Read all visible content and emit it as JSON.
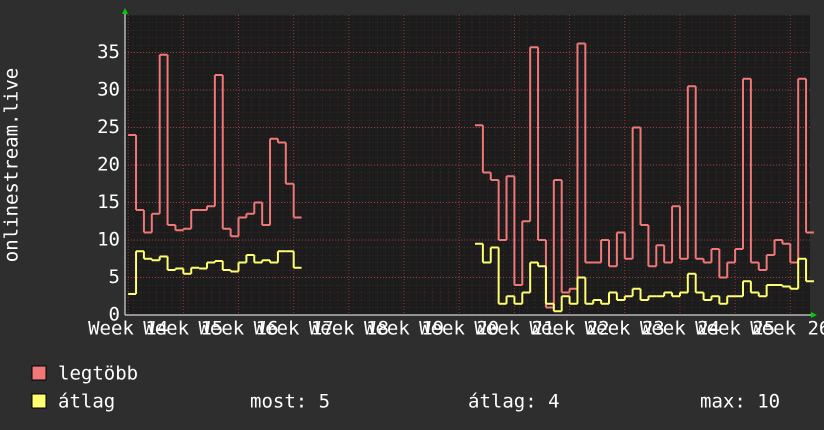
{
  "chart_data": {
    "type": "line",
    "step": true,
    "y_label": "onlinestream.live",
    "x": [
      0,
      1,
      2,
      3,
      4,
      5,
      6,
      7,
      8,
      9,
      10,
      11,
      12,
      13,
      14,
      15,
      16,
      17,
      18,
      19,
      20,
      21,
      22,
      23,
      24,
      25,
      26,
      27,
      28,
      29,
      30,
      31,
      32,
      33,
      34,
      35,
      36,
      37,
      38,
      39,
      40,
      41,
      42,
      43,
      44,
      45,
      46,
      47,
      48,
      49,
      50,
      51,
      52,
      53,
      54,
      55,
      56,
      57,
      58,
      59,
      60,
      61,
      62,
      63,
      64,
      65,
      66,
      67,
      68,
      69,
      70,
      71,
      72,
      73,
      74,
      75,
      76,
      77,
      78,
      79,
      80,
      81,
      82,
      83,
      84,
      85,
      86
    ],
    "series": [
      {
        "name": "legtöbb",
        "color": "#f07878",
        "values": [
          24,
          14,
          11,
          13.5,
          34.7,
          12,
          11.3,
          11.5,
          14,
          14,
          14.5,
          32,
          11.5,
          10.5,
          13,
          13.5,
          15,
          12,
          23.5,
          23,
          17.5,
          13,
          null,
          null,
          null,
          null,
          null,
          null,
          null,
          null,
          null,
          null,
          null,
          null,
          null,
          null,
          null,
          null,
          null,
          null,
          null,
          null,
          null,
          null,
          25.3,
          19,
          18,
          10,
          18.5,
          4,
          12.5,
          35.7,
          10,
          1,
          18,
          3,
          3.5,
          36.2,
          7,
          7,
          10,
          6.5,
          11,
          7.5,
          25,
          12,
          6.5,
          9.3,
          7,
          14.5,
          7.5,
          30.5,
          7.5,
          7,
          8.8,
          5,
          7,
          8.8,
          31.5,
          7,
          6,
          8,
          10,
          9.5,
          7,
          31.5,
          11
        ]
      },
      {
        "name": "átlag",
        "color": "#ffff70",
        "values": [
          2.8,
          8.5,
          7.5,
          7.3,
          7.8,
          6,
          6.2,
          5.5,
          6.3,
          6.2,
          7,
          7.2,
          6,
          5.8,
          7,
          8,
          7,
          7.3,
          7,
          8.5,
          8.5,
          6.3,
          null,
          null,
          null,
          null,
          null,
          null,
          null,
          null,
          null,
          null,
          null,
          null,
          null,
          null,
          null,
          null,
          null,
          null,
          null,
          null,
          null,
          null,
          9.5,
          7,
          9,
          1.5,
          2.5,
          1.5,
          3,
          7,
          6.5,
          1.5,
          0.5,
          2.5,
          1.5,
          5,
          1.5,
          2,
          1.5,
          3,
          2,
          2.5,
          3.5,
          2,
          2.5,
          2.5,
          3,
          2.5,
          3,
          5.5,
          3,
          2,
          2.5,
          1.5,
          2.5,
          2.5,
          4.5,
          3,
          2.5,
          4,
          4,
          3.8,
          3.5,
          7.5,
          4.5
        ]
      }
    ],
    "xlim": [
      -0.4,
      86.5
    ],
    "xticks": [
      {
        "value": 0,
        "label": "Week 14"
      },
      {
        "value": 7,
        "label": "Week 15"
      },
      {
        "value": 14,
        "label": "Week 16"
      },
      {
        "value": 21,
        "label": "Week 17"
      },
      {
        "value": 28,
        "label": "Week 18"
      },
      {
        "value": 35,
        "label": "Week 19"
      },
      {
        "value": 42,
        "label": "Week 20"
      },
      {
        "value": 49,
        "label": "Week 21"
      },
      {
        "value": 56,
        "label": "Week 22"
      },
      {
        "value": 63,
        "label": "Week 23"
      },
      {
        "value": 70,
        "label": "Week 24"
      },
      {
        "value": 77,
        "label": "Week 25"
      },
      {
        "value": 84,
        "label": "Week 26"
      }
    ],
    "ylim": [
      0,
      40
    ],
    "yticks": [
      0,
      5,
      10,
      15,
      20,
      25,
      30,
      35
    ],
    "grid": true,
    "stats": [
      "most: 5",
      "átlag: 4",
      "max: 10"
    ]
  }
}
